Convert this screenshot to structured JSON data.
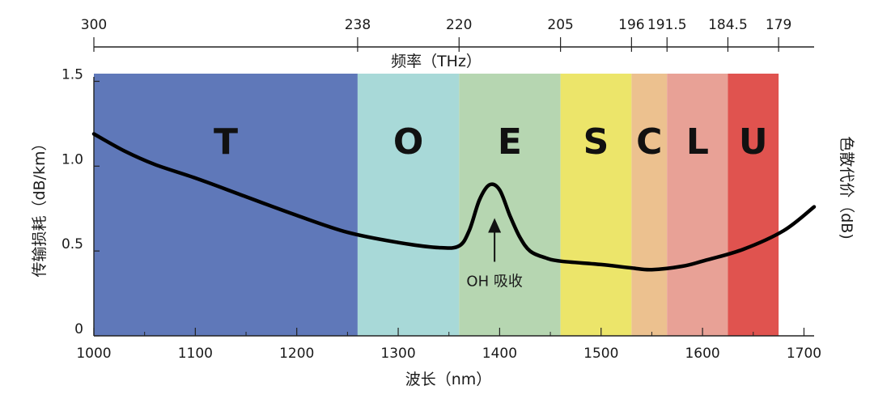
{
  "chart_data": {
    "type": "line",
    "title": "",
    "xlabel": "波长（nm）",
    "ylabel": "传输损耗（dB/km）",
    "ylabel_right": "色散代价（dB)",
    "top_axis_label": "频率（THz）",
    "xlim": [
      1000,
      1710
    ],
    "ylim": [
      0,
      1.55
    ],
    "x_ticks": [
      1000,
      1100,
      1200,
      1300,
      1400,
      1500,
      1600,
      1700
    ],
    "y_ticks": [
      {
        "value": 0,
        "label": "0"
      },
      {
        "value": 0.5,
        "label": "0.5"
      },
      {
        "value": 1.0,
        "label": "1.0"
      },
      {
        "value": 1.5,
        "label": "1.5"
      }
    ],
    "top_ticks": [
      {
        "wavelength": 1000,
        "label": "300"
      },
      {
        "wavelength": 1260,
        "label": "238"
      },
      {
        "wavelength": 1360,
        "label": "220"
      },
      {
        "wavelength": 1460,
        "label": "205"
      },
      {
        "wavelength": 1530,
        "label": "196"
      },
      {
        "wavelength": 1565,
        "label": "191.5"
      },
      {
        "wavelength": 1625,
        "label": "184.5"
      },
      {
        "wavelength": 1675,
        "label": "179"
      }
    ],
    "bands": [
      {
        "label": "T",
        "start": 1000,
        "end": 1260,
        "color": "#5f78b9"
      },
      {
        "label": "O",
        "start": 1260,
        "end": 1360,
        "color": "#a8d9d8"
      },
      {
        "label": "E",
        "start": 1360,
        "end": 1460,
        "color": "#b6d6b1"
      },
      {
        "label": "S",
        "start": 1460,
        "end": 1530,
        "color": "#ece56a"
      },
      {
        "label": "C",
        "start": 1530,
        "end": 1565,
        "color": "#ecc18f"
      },
      {
        "label": "L",
        "start": 1565,
        "end": 1625,
        "color": "#e8a196"
      },
      {
        "label": "U",
        "start": 1625,
        "end": 1675,
        "color": "#e0534f"
      }
    ],
    "series": [
      {
        "color": "#000000",
        "x": [
          1000,
          1030,
          1060,
          1100,
          1150,
          1200,
          1250,
          1300,
          1340,
          1360,
          1370,
          1380,
          1390,
          1400,
          1410,
          1420,
          1430,
          1445,
          1460,
          1500,
          1530,
          1550,
          1580,
          1600,
          1640,
          1680,
          1710
        ],
        "y": [
          1.19,
          1.09,
          1.01,
          0.93,
          0.82,
          0.71,
          0.61,
          0.55,
          0.52,
          0.53,
          0.62,
          0.8,
          0.89,
          0.86,
          0.71,
          0.58,
          0.5,
          0.46,
          0.44,
          0.42,
          0.4,
          0.39,
          0.41,
          0.44,
          0.51,
          0.62,
          0.76
        ]
      }
    ],
    "annotations": [
      {
        "text": "OH 吸收",
        "x": 1395,
        "y": 0.88
      }
    ]
  }
}
